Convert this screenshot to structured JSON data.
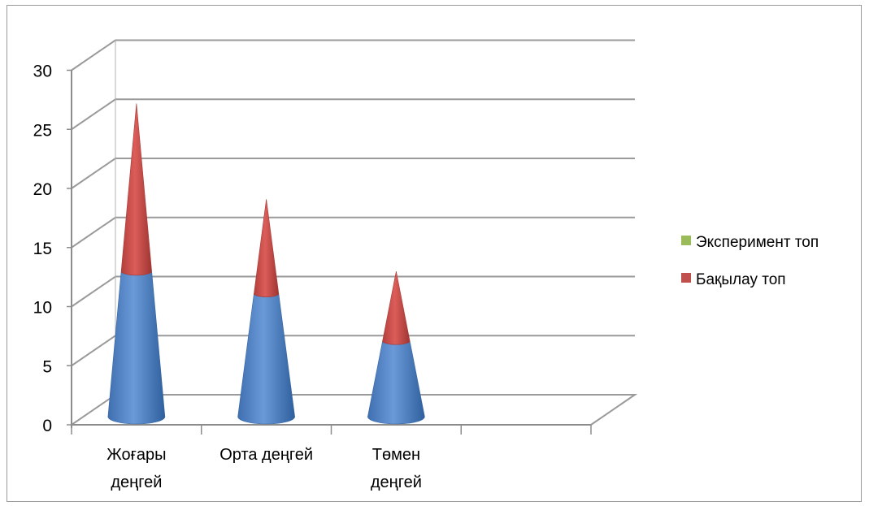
{
  "chart_data": {
    "type": "bar",
    "shape": "cone",
    "stacked": true,
    "categories": [
      [
        "Жоғары",
        "деңгей"
      ],
      [
        "Орта деңгей"
      ],
      [
        "Төмен",
        "деңгей"
      ],
      [
        ""
      ]
    ],
    "series": [
      {
        "name": "Эксперимент топ",
        "values": [
          12.3,
          10.4,
          6.4,
          0
        ],
        "color": "#4f81bd"
      },
      {
        "name": "Бақылау топ",
        "values": [
          14.2,
          8.0,
          5.9,
          0
        ],
        "color": "#c0504d"
      }
    ],
    "legend_swatch_colors": [
      "#9bbb59",
      "#c0504d"
    ],
    "ylim": [
      0,
      30
    ],
    "yticks": [
      "0",
      "5",
      "10",
      "15",
      "20",
      "25",
      "30"
    ],
    "grid": true,
    "legend_position": "right",
    "title": "",
    "xlabel": "",
    "ylabel": ""
  }
}
